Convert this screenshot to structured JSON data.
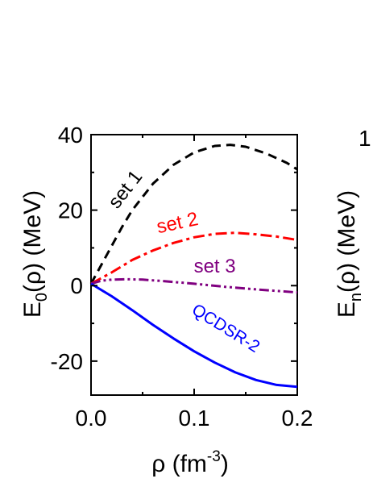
{
  "chart_data": [
    {
      "type": "line",
      "xlabel": "ρ (fm⁻³)",
      "xlabel_parts": {
        "main": "ρ (fm",
        "sup": "-3",
        "tail": ")"
      },
      "ylabel": "E₀(ρ) (MeV)",
      "ylabel_parts": {
        "pre": "E",
        "sub": "0",
        "post": "(ρ) (MeV)"
      },
      "xlim": [
        0.0,
        0.2
      ],
      "ylim": [
        -29,
        40
      ],
      "x_ticks": [
        0.0,
        0.1,
        0.2
      ],
      "x_tick_labels": [
        "0.0",
        "0.1",
        "0.2"
      ],
      "y_ticks": [
        -20,
        0,
        20,
        40
      ],
      "y_tick_labels": [
        "-20",
        "0",
        "20",
        "40"
      ],
      "grid": false,
      "series": [
        {
          "name": "set 1",
          "color": "#000000",
          "style": "dashed",
          "x": [
            0.0,
            0.01,
            0.02,
            0.03,
            0.04,
            0.06,
            0.08,
            0.1,
            0.12,
            0.135,
            0.15,
            0.17,
            0.19,
            0.2
          ],
          "y": [
            0.5,
            5.5,
            10.5,
            15.5,
            20.0,
            27.0,
            32.0,
            35.3,
            37.0,
            37.3,
            36.8,
            35.0,
            32.5,
            30.8
          ]
        },
        {
          "name": "set 2",
          "color": "#ff0000",
          "style": "dashdot",
          "x": [
            0.0,
            0.02,
            0.04,
            0.06,
            0.08,
            0.1,
            0.12,
            0.14,
            0.16,
            0.18,
            0.2
          ],
          "y": [
            0.5,
            3.5,
            6.8,
            9.3,
            11.3,
            12.8,
            13.7,
            14.0,
            13.6,
            13.0,
            12.1
          ]
        },
        {
          "name": "set 3",
          "color": "#800080",
          "style": "dashdotdot",
          "x": [
            0.0,
            0.01,
            0.02,
            0.035,
            0.05,
            0.07,
            0.1,
            0.13,
            0.16,
            0.2
          ],
          "y": [
            0.5,
            1.3,
            1.6,
            1.7,
            1.6,
            1.2,
            0.5,
            -0.3,
            -1.0,
            -1.8
          ]
        },
        {
          "name": "QCDSR-2",
          "color": "#0000ff",
          "style": "solid",
          "x": [
            0.0,
            0.02,
            0.04,
            0.06,
            0.08,
            0.1,
            0.12,
            0.14,
            0.16,
            0.18,
            0.2
          ],
          "y": [
            0.5,
            -2.8,
            -6.5,
            -10.4,
            -14.0,
            -17.4,
            -20.4,
            -23.0,
            -25.0,
            -26.3,
            -26.8
          ]
        }
      ]
    }
  ],
  "right_panel_fragment": {
    "tick_label": "1",
    "ylabel_parts": {
      "pre": "E",
      "sub": "n",
      "post": "(ρ) (MeV)"
    }
  }
}
